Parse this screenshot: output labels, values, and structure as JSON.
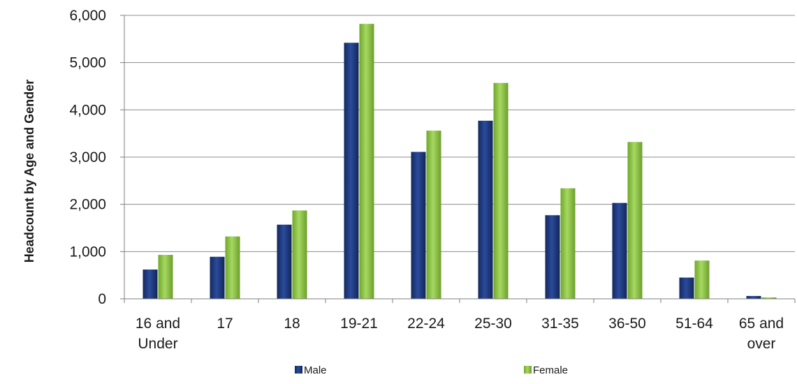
{
  "chart_data": {
    "type": "bar",
    "ylabel": "Headcount by Age and Gender",
    "xlabel": "",
    "ylim": [
      0,
      6000
    ],
    "yticks": [
      0,
      1000,
      2000,
      3000,
      4000,
      5000,
      6000
    ],
    "ytick_labels": [
      "0",
      "1,000",
      "2,000",
      "3,000",
      "4,000",
      "5,000",
      "6,000"
    ],
    "grid": true,
    "legend_position": "bottom",
    "categories": [
      [
        "16 and",
        "Under"
      ],
      [
        "17"
      ],
      [
        "18"
      ],
      [
        "19-21"
      ],
      [
        "22-24"
      ],
      [
        "25-30"
      ],
      [
        "31-35"
      ],
      [
        "36-50"
      ],
      [
        "51-64"
      ],
      [
        "65 and",
        "over"
      ]
    ],
    "series": [
      {
        "name": "Male",
        "color": "#1f3a80",
        "values": [
          620,
          890,
          1570,
          5420,
          3110,
          3770,
          1770,
          2030,
          450,
          60
        ]
      },
      {
        "name": "Female",
        "color": "#8cc63f",
        "values": [
          930,
          1320,
          1870,
          5820,
          3560,
          4570,
          2340,
          3320,
          810,
          30
        ]
      }
    ]
  }
}
